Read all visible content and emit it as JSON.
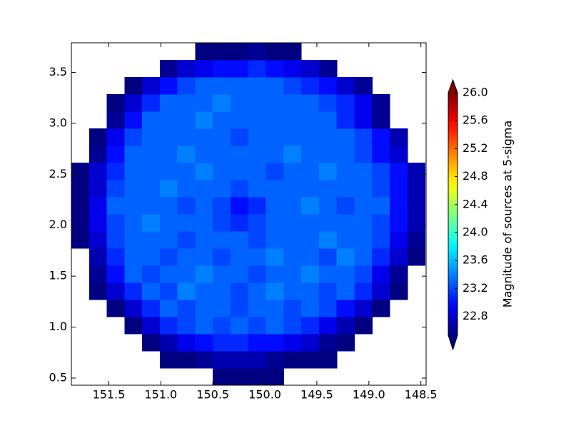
{
  "chart_data": {
    "type": "heatmap",
    "colorbar_label": "Magnitude of sources at 5-sigma",
    "colormap": "jet",
    "clim": [
      22.53,
      26.0
    ],
    "cticks": [
      22.8,
      23.2,
      23.6,
      {
        "value": 24,
        "label": "24.0"
      },
      24.4,
      24.8,
      25.2,
      25.6,
      {
        "value": 26,
        "label": "26.0"
      }
    ],
    "xlim": [
      151.86,
      148.45
    ],
    "ylim": [
      0.43,
      3.79
    ],
    "xticks": [
      151.5,
      {
        "value": 151,
        "label": "151.0"
      },
      150.5,
      {
        "value": 150,
        "label": "150.0"
      },
      149.5,
      {
        "value": 149,
        "label": "149.0"
      },
      148.5
    ],
    "yticks": [
      0.5,
      {
        "value": 1,
        "label": "1.0"
      },
      1.5,
      {
        "value": 2,
        "label": "2.0"
      },
      2.5,
      {
        "value": 3,
        "label": "3.0"
      },
      3.5
    ],
    "xbins": [
      151.86,
      151.69,
      151.52,
      151.35,
      151.18,
      151.01,
      150.84,
      150.67,
      150.5,
      150.33,
      150.16,
      149.99,
      149.82,
      149.65,
      149.48,
      149.31,
      149.14,
      148.97,
      148.8,
      148.63,
      148.46
    ],
    "ybins": [
      0.43,
      0.598,
      0.766,
      0.934,
      1.102,
      1.27,
      1.438,
      1.606,
      1.774,
      1.942,
      2.11,
      2.278,
      2.446,
      2.614,
      2.782,
      2.95,
      3.118,
      3.286,
      3.454,
      3.622,
      3.79
    ],
    "z": [
      [
        null,
        null,
        null,
        null,
        null,
        null,
        null,
        null,
        22.5,
        22.5,
        22.5,
        22.5,
        null,
        null,
        null,
        null,
        null,
        null,
        null,
        null
      ],
      [
        null,
        null,
        null,
        null,
        null,
        22.5,
        22.5,
        22.6,
        22.7,
        22.7,
        22.7,
        22.6,
        22.5,
        22.5,
        22.5,
        null,
        null,
        null,
        null,
        null
      ],
      [
        null,
        null,
        null,
        null,
        22.5,
        22.7,
        22.9,
        23.0,
        23.1,
        23.1,
        23.0,
        23.0,
        22.9,
        22.8,
        22.6,
        22.5,
        null,
        null,
        null,
        null
      ],
      [
        null,
        null,
        null,
        22.5,
        22.8,
        23.1,
        23.2,
        23.3,
        23.2,
        23.3,
        23.2,
        23.3,
        23.2,
        23.1,
        22.9,
        22.7,
        22.5,
        null,
        null,
        null
      ],
      [
        null,
        null,
        22.5,
        22.8,
        23.1,
        23.3,
        23.2,
        23.3,
        23.3,
        23.2,
        23.3,
        23.3,
        23.2,
        23.3,
        23.2,
        23.0,
        22.8,
        22.5,
        null,
        null
      ],
      [
        null,
        22.5,
        22.8,
        23.1,
        23.3,
        23.2,
        23.4,
        23.3,
        23.3,
        23.2,
        23.3,
        23.4,
        23.3,
        23.3,
        23.2,
        23.3,
        23.1,
        22.8,
        22.5,
        null
      ],
      [
        null,
        22.6,
        23.0,
        23.3,
        23.2,
        23.3,
        23.3,
        23.4,
        23.3,
        23.3,
        23.2,
        23.3,
        23.3,
        23.4,
        23.3,
        23.3,
        23.2,
        22.9,
        22.6,
        null
      ],
      [
        null,
        22.7,
        23.1,
        23.3,
        23.3,
        23.2,
        23.3,
        23.3,
        23.2,
        23.3,
        23.3,
        23.4,
        23.3,
        23.3,
        23.2,
        23.4,
        23.3,
        23.1,
        22.8,
        22.5
      ],
      [
        22.5,
        22.8,
        23.2,
        23.3,
        23.3,
        23.3,
        23.2,
        23.3,
        23.3,
        23.3,
        23.2,
        23.3,
        23.3,
        23.3,
        23.4,
        23.3,
        23.3,
        23.2,
        22.9,
        22.6
      ],
      [
        22.5,
        22.9,
        23.2,
        23.3,
        23.4,
        23.3,
        23.3,
        23.3,
        23.2,
        23.1,
        23.2,
        23.3,
        23.3,
        23.3,
        23.3,
        23.3,
        23.3,
        23.2,
        23.0,
        22.7
      ],
      [
        22.5,
        22.9,
        23.3,
        23.3,
        23.3,
        23.3,
        23.2,
        23.3,
        23.2,
        23.0,
        23.1,
        23.3,
        23.3,
        23.4,
        23.3,
        23.2,
        23.3,
        23.3,
        23.0,
        22.7
      ],
      [
        22.5,
        22.8,
        23.2,
        23.3,
        23.3,
        23.4,
        23.3,
        23.3,
        23.3,
        23.2,
        23.3,
        23.3,
        23.3,
        23.3,
        23.3,
        23.3,
        23.3,
        23.2,
        23.0,
        22.7
      ],
      [
        22.5,
        22.8,
        23.1,
        23.3,
        23.3,
        23.3,
        23.3,
        23.4,
        23.3,
        23.3,
        23.3,
        23.2,
        23.3,
        23.3,
        23.4,
        23.3,
        23.3,
        23.2,
        23.0,
        22.7
      ],
      [
        null,
        22.6,
        23.0,
        23.3,
        23.3,
        23.3,
        23.4,
        23.3,
        23.3,
        23.3,
        23.3,
        23.3,
        23.4,
        23.3,
        23.3,
        23.3,
        23.2,
        23.0,
        22.8,
        null
      ],
      [
        null,
        22.5,
        22.9,
        23.2,
        23.3,
        23.3,
        23.3,
        23.3,
        23.3,
        23.2,
        23.3,
        23.3,
        23.3,
        23.3,
        23.3,
        23.3,
        23.2,
        23.0,
        22.7,
        null
      ],
      [
        null,
        null,
        22.6,
        23.0,
        23.3,
        23.3,
        23.3,
        23.4,
        23.3,
        23.3,
        23.3,
        23.3,
        23.3,
        23.3,
        23.3,
        23.1,
        22.9,
        22.6,
        null,
        null
      ],
      [
        null,
        null,
        22.5,
        22.8,
        23.1,
        23.3,
        23.3,
        23.3,
        23.4,
        23.3,
        23.3,
        23.3,
        23.3,
        23.3,
        23.2,
        23.1,
        22.9,
        22.6,
        null,
        null
      ],
      [
        null,
        null,
        null,
        22.5,
        22.8,
        23.0,
        23.2,
        23.3,
        23.3,
        23.3,
        23.3,
        23.3,
        23.2,
        23.1,
        23.0,
        22.8,
        22.6,
        null,
        null,
        null
      ],
      [
        null,
        null,
        null,
        null,
        null,
        22.6,
        22.8,
        22.9,
        23.0,
        23.0,
        23.1,
        23.0,
        22.9,
        22.8,
        22.6,
        null,
        null,
        null,
        null,
        null
      ],
      [
        null,
        null,
        null,
        null,
        null,
        null,
        null,
        22.5,
        22.5,
        22.5,
        22.6,
        22.5,
        22.5,
        null,
        null,
        null,
        null,
        null,
        null,
        null
      ]
    ]
  }
}
